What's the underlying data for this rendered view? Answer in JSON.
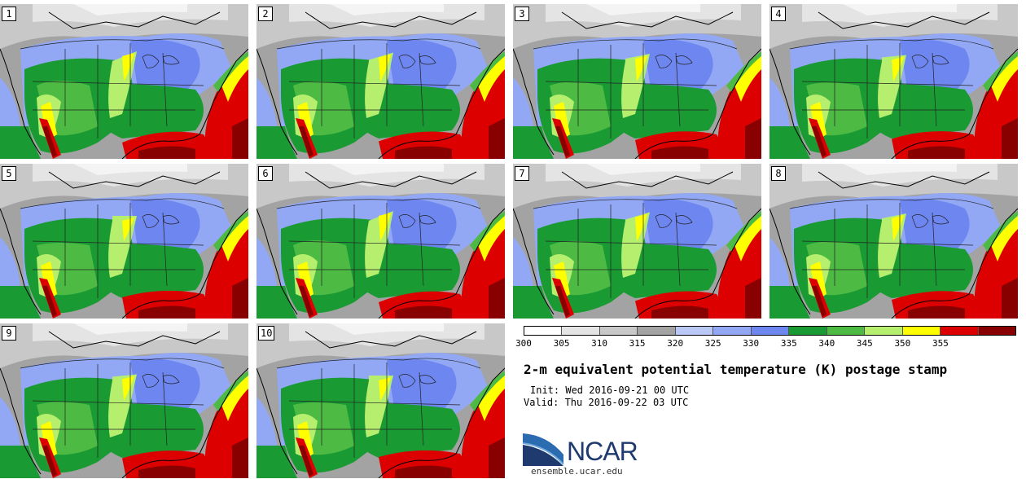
{
  "panels": [
    {
      "label": "1"
    },
    {
      "label": "2"
    },
    {
      "label": "3"
    },
    {
      "label": "4"
    },
    {
      "label": "5"
    },
    {
      "label": "6"
    },
    {
      "label": "7"
    },
    {
      "label": "8"
    },
    {
      "label": "9"
    },
    {
      "label": "10"
    }
  ],
  "legend": {
    "colors": [
      "#ffffff",
      "#e4e4e4",
      "#c8c8c8",
      "#a3a3a3",
      "#b9c8f7",
      "#92a8f5",
      "#6e86f0",
      "#1a9a33",
      "#4dba43",
      "#b6ef6e",
      "#ffff00",
      "#dd0000",
      "#880000"
    ],
    "ticks": [
      "300",
      "305",
      "310",
      "315",
      "320",
      "325",
      "330",
      "335",
      "340",
      "345",
      "350",
      "355"
    ]
  },
  "title": "2-m equivalent potential temperature (K) postage stamp",
  "init": "Init: Wed 2016-09-21 00 UTC",
  "valid": "Valid: Thu 2016-09-22 03 UTC",
  "logo": {
    "name": "NCAR",
    "site": "ensemble.ucar.edu"
  }
}
